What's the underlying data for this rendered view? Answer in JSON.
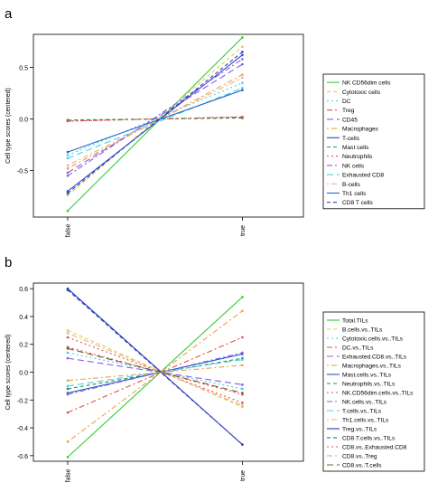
{
  "panels": [
    {
      "letter": "a"
    },
    {
      "letter": "b"
    }
  ],
  "chart_data": [
    {
      "type": "line",
      "panel": "a",
      "categories": [
        "false",
        "true"
      ],
      "ylabel": "Cell type scores (centered)",
      "ylim": [
        -0.95,
        0.82
      ],
      "yticks": [
        -0.5,
        0.0,
        0.5
      ],
      "legend": "right",
      "series": [
        {
          "name": "NK CD56dim cells",
          "color": "#33cc33",
          "dash": "",
          "values": [
            -0.89,
            0.79
          ]
        },
        {
          "name": "Cytotoxic cells",
          "color": "#d4d44a",
          "dash": "4,3",
          "values": [
            -0.74,
            0.7
          ]
        },
        {
          "name": "DC",
          "color": "#47d1e6",
          "dash": "2,3",
          "values": [
            -0.35,
            0.35
          ]
        },
        {
          "name": "Treg",
          "color": "#e05050",
          "dash": "6,3,2,3",
          "values": [
            -0.02,
            0.02
          ]
        },
        {
          "name": "CD45",
          "color": "#8a5ce6",
          "dash": "7,4",
          "values": [
            -0.52,
            0.53
          ]
        },
        {
          "name": "Macrophages",
          "color": "#e6a24d",
          "dash": "2,3,6,3",
          "values": [
            -0.48,
            0.43
          ]
        },
        {
          "name": "T-cells",
          "color": "#3344dd",
          "dash": "",
          "values": [
            -0.7,
            0.62
          ]
        },
        {
          "name": "Mast cells",
          "color": "#2e8b57",
          "dash": "4,3",
          "values": [
            -0.01,
            0.01
          ]
        },
        {
          "name": "Neutrophils",
          "color": "#e05050",
          "dash": "2,3",
          "values": [
            -0.02,
            0.02
          ]
        },
        {
          "name": "NK cells",
          "color": "#8a5ce6",
          "dash": "6,3,2,3",
          "values": [
            -0.55,
            0.58
          ]
        },
        {
          "name": "Exhausted CD8",
          "color": "#47d1e6",
          "dash": "7,4",
          "values": [
            -0.38,
            0.3
          ]
        },
        {
          "name": "B-cells",
          "color": "#f0b080",
          "dash": "2,3,6,3",
          "values": [
            -0.45,
            0.4
          ]
        },
        {
          "name": "Th1 cells",
          "color": "#2266cc",
          "dash": "",
          "values": [
            -0.32,
            0.28
          ]
        },
        {
          "name": "CD8 T cells",
          "color": "#3344aa",
          "dash": "4,3",
          "values": [
            -0.72,
            0.65
          ]
        }
      ]
    },
    {
      "type": "line",
      "panel": "b",
      "categories": [
        "false",
        "true"
      ],
      "ylabel": "Cell type scores (centered)",
      "ylim": [
        -0.64,
        0.64
      ],
      "yticks": [
        -0.6,
        -0.4,
        -0.2,
        0.0,
        0.2,
        0.4,
        0.6
      ],
      "legend": "right",
      "series": [
        {
          "name": "Total.TILs",
          "color": "#33cc33",
          "dash": "",
          "values": [
            -0.61,
            0.54
          ]
        },
        {
          "name": "B.cells.vs..TILs",
          "color": "#d4d44a",
          "dash": "4,3",
          "values": [
            0.3,
            -0.25
          ]
        },
        {
          "name": "Cytotoxic.cells.vs..TILs",
          "color": "#47d1e6",
          "dash": "2,3",
          "values": [
            0.14,
            -0.12
          ]
        },
        {
          "name": "DC.vs..TILs",
          "color": "#e05050",
          "dash": "6,3,2,3",
          "values": [
            -0.29,
            0.25
          ]
        },
        {
          "name": "Exhausted.CD8.vs..TILs",
          "color": "#8a5ce6",
          "dash": "7,4",
          "values": [
            0.1,
            -0.09
          ]
        },
        {
          "name": "Macrophages.vs..TILs",
          "color": "#e6a24d",
          "dash": "2,3,6,3",
          "values": [
            -0.5,
            0.44
          ]
        },
        {
          "name": "Mast.cells.vs..TILs",
          "color": "#2255cc",
          "dash": "",
          "values": [
            -0.15,
            0.13
          ]
        },
        {
          "name": "Neutrophils.vs..TILs",
          "color": "#2e8b57",
          "dash": "4,3",
          "values": [
            -0.12,
            0.1
          ]
        },
        {
          "name": "NK.CD56dim.cells.vs..TILs",
          "color": "#e05050",
          "dash": "2,3",
          "values": [
            0.25,
            -0.22
          ]
        },
        {
          "name": "NK.cells.vs..TILs",
          "color": "#8a5ce6",
          "dash": "6,3,2,3",
          "values": [
            -0.16,
            0.14
          ]
        },
        {
          "name": "T.cells.vs..TILs",
          "color": "#47d1e6",
          "dash": "7,4",
          "values": [
            -0.1,
            0.09
          ]
        },
        {
          "name": "Th1.cells.vs..TILs",
          "color": "#f0b080",
          "dash": "2,3,6,3",
          "values": [
            0.28,
            -0.24
          ]
        },
        {
          "name": "Treg.vs..TILs",
          "color": "#2233cc",
          "dash": "",
          "values": [
            0.6,
            -0.52
          ]
        },
        {
          "name": "CD8.T.cells.vs..TILs",
          "color": "#3344aa",
          "dash": "4,3",
          "values": [
            0.59,
            -0.52
          ]
        },
        {
          "name": "CD8.vs..Exhausted.CD8",
          "color": "#e05050",
          "dash": "2,3",
          "values": [
            0.18,
            -0.16
          ]
        },
        {
          "name": "CD8.vs..Treg",
          "color": "#e6a24d",
          "dash": "6,3,2,3",
          "values": [
            -0.06,
            0.05
          ]
        },
        {
          "name": "CD8.vs..T.cells",
          "color": "#7a5a20",
          "dash": "7,4",
          "values": [
            0.17,
            -0.15
          ]
        }
      ]
    }
  ]
}
